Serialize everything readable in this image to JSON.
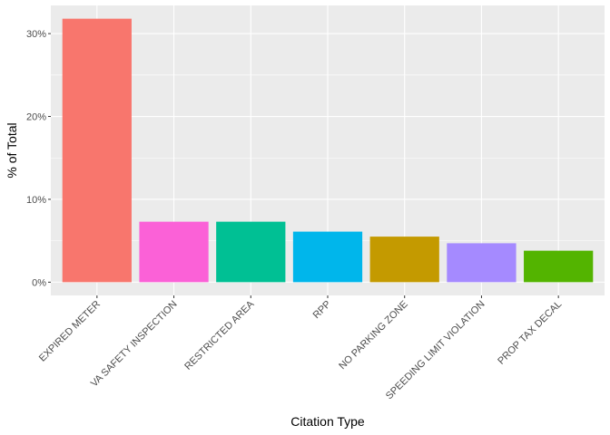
{
  "chart_data": {
    "type": "bar",
    "xlabel": "Citation Type",
    "ylabel": "% of Total",
    "categories": [
      "EXPIRED METER",
      "VA SAFETY INSPECTION",
      "RESTRICTED AREA",
      "RPP",
      "NO PARKING ZONE",
      "SPEEDING LIMIT VIOLATION",
      "PROP TAX DECAL"
    ],
    "values": [
      31.8,
      7.3,
      7.3,
      6.1,
      5.5,
      4.7,
      3.8
    ],
    "colors": [
      "#F8766D",
      "#FB61D7",
      "#00C094",
      "#00B6EB",
      "#C49A00",
      "#A58AFF",
      "#53B400"
    ],
    "ylim": [
      -1.6,
      33.4
    ],
    "yticks": [
      0,
      10,
      20,
      30
    ],
    "ytick_labels": [
      "0%",
      "10%",
      "20%",
      "30%"
    ],
    "grid": true,
    "legend": "none",
    "panel_background": "#EBEBEB"
  }
}
